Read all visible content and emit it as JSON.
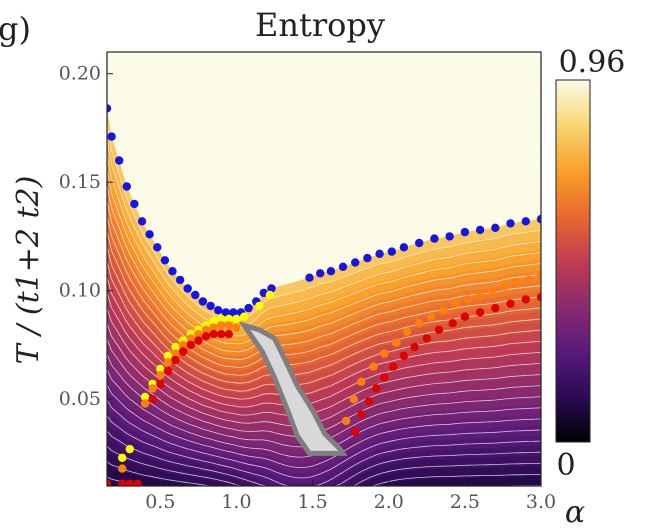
{
  "panel_label": "g)",
  "chart_data": {
    "type": "heatmap",
    "title": "Entropy",
    "xlabel": "α",
    "ylabel": "T / (t1+2 t2)",
    "xlim": [
      0.15,
      3.0
    ],
    "ylim": [
      0.01,
      0.21
    ],
    "x_ticks": [
      0.5,
      1.0,
      1.5,
      2.0,
      2.5,
      3.0
    ],
    "x_tick_labels": [
      "0.5",
      "1.0",
      "1.5",
      "2.0",
      "2.5",
      "3.0"
    ],
    "y_ticks": [
      0.05,
      0.1,
      0.15,
      0.2
    ],
    "y_tick_labels": [
      "0.05",
      "0.10",
      "0.15",
      "0.20"
    ],
    "colorbar": {
      "min": 0,
      "max": 0.96,
      "min_label": "0",
      "max_label": "0.96",
      "colormap": "inferno"
    },
    "colormap_stops": [
      "#000004",
      "#2c0b55",
      "#5a1a7a",
      "#8a2a6e",
      "#c13c52",
      "#e96a2c",
      "#f9a02a",
      "#f8d673",
      "#fcfbe8"
    ],
    "colors": {
      "blue": "#1515e8",
      "orange": "#ff7f0e",
      "red": "#e00000",
      "yellow": "#ffff00",
      "gray_region": "#d8d8d8",
      "gray_border": "#7f7f7f"
    },
    "series": [
      {
        "name": "blue",
        "color": "#1515e8",
        "points": [
          [
            0.15,
            0.184
          ],
          [
            0.18,
            0.171
          ],
          [
            0.23,
            0.16
          ],
          [
            0.28,
            0.148
          ],
          [
            0.33,
            0.14
          ],
          [
            0.38,
            0.132
          ],
          [
            0.43,
            0.126
          ],
          [
            0.48,
            0.12
          ],
          [
            0.53,
            0.114
          ],
          [
            0.58,
            0.109
          ],
          [
            0.63,
            0.105
          ],
          [
            0.68,
            0.101
          ],
          [
            0.73,
            0.098
          ],
          [
            0.78,
            0.095
          ],
          [
            0.83,
            0.093
          ],
          [
            0.88,
            0.091
          ],
          [
            0.93,
            0.09
          ],
          [
            0.98,
            0.09
          ],
          [
            1.03,
            0.09
          ],
          [
            1.08,
            0.092
          ],
          [
            1.13,
            0.095
          ],
          [
            1.18,
            0.099
          ],
          [
            1.23,
            0.101
          ],
          [
            1.48,
            0.106
          ],
          [
            1.55,
            0.108
          ],
          [
            1.62,
            0.109
          ],
          [
            1.7,
            0.111
          ],
          [
            1.78,
            0.113
          ],
          [
            1.86,
            0.115
          ],
          [
            1.94,
            0.117
          ],
          [
            2.02,
            0.118
          ],
          [
            2.1,
            0.12
          ],
          [
            2.2,
            0.122
          ],
          [
            2.3,
            0.124
          ],
          [
            2.4,
            0.125
          ],
          [
            2.5,
            0.127
          ],
          [
            2.6,
            0.128
          ],
          [
            2.7,
            0.129
          ],
          [
            2.8,
            0.131
          ],
          [
            2.9,
            0.132
          ],
          [
            3.0,
            0.133
          ]
        ]
      },
      {
        "name": "yellow",
        "color": "#ffff00",
        "points": [
          [
            0.25,
            0.023
          ],
          [
            0.3,
            0.027
          ],
          [
            0.4,
            0.051
          ],
          [
            0.45,
            0.057
          ],
          [
            0.5,
            0.064
          ],
          [
            0.55,
            0.07
          ],
          [
            0.6,
            0.074
          ],
          [
            0.65,
            0.077
          ],
          [
            0.7,
            0.08
          ],
          [
            0.75,
            0.082
          ],
          [
            0.8,
            0.084
          ],
          [
            0.85,
            0.086
          ],
          [
            0.9,
            0.087
          ],
          [
            0.95,
            0.087
          ],
          [
            1.0,
            0.087
          ],
          [
            1.05,
            0.088
          ],
          [
            1.15,
            0.093
          ],
          [
            1.22,
            0.098
          ]
        ]
      },
      {
        "name": "orange",
        "color": "#ff7f0e",
        "points": [
          [
            0.25,
            0.018
          ],
          [
            0.4,
            0.048
          ],
          [
            0.45,
            0.055
          ],
          [
            0.5,
            0.061
          ],
          [
            0.55,
            0.067
          ],
          [
            0.6,
            0.071
          ],
          [
            0.65,
            0.075
          ],
          [
            0.7,
            0.078
          ],
          [
            0.75,
            0.08
          ],
          [
            0.8,
            0.082
          ],
          [
            0.85,
            0.083
          ],
          [
            0.9,
            0.084
          ],
          [
            0.95,
            0.084
          ],
          [
            1.0,
            0.083
          ],
          [
            1.72,
            0.04
          ],
          [
            1.77,
            0.05
          ],
          [
            1.82,
            0.058
          ],
          [
            1.9,
            0.065
          ],
          [
            1.97,
            0.071
          ],
          [
            2.05,
            0.076
          ],
          [
            2.12,
            0.081
          ],
          [
            2.2,
            0.085
          ],
          [
            2.28,
            0.088
          ],
          [
            2.36,
            0.091
          ],
          [
            2.44,
            0.094
          ],
          [
            2.52,
            0.096
          ],
          [
            2.6,
            0.098
          ],
          [
            2.68,
            0.1
          ],
          [
            2.76,
            0.102
          ],
          [
            2.84,
            0.104
          ],
          [
            2.92,
            0.105
          ],
          [
            3.0,
            0.107
          ]
        ]
      },
      {
        "name": "red",
        "color": "#e00000",
        "points": [
          [
            0.15,
            0.011
          ],
          [
            0.25,
            0.011
          ],
          [
            0.3,
            0.011
          ],
          [
            0.35,
            0.011
          ],
          [
            0.45,
            0.05
          ],
          [
            0.5,
            0.057
          ],
          [
            0.55,
            0.063
          ],
          [
            0.6,
            0.068
          ],
          [
            0.65,
            0.072
          ],
          [
            0.7,
            0.075
          ],
          [
            0.75,
            0.077
          ],
          [
            0.8,
            0.079
          ],
          [
            0.85,
            0.08
          ],
          [
            0.9,
            0.08
          ],
          [
            0.95,
            0.08
          ],
          [
            1.78,
            0.035
          ],
          [
            1.82,
            0.043
          ],
          [
            1.87,
            0.049
          ],
          [
            1.92,
            0.055
          ],
          [
            1.97,
            0.06
          ],
          [
            2.03,
            0.065
          ],
          [
            2.1,
            0.07
          ],
          [
            2.17,
            0.074
          ],
          [
            2.25,
            0.078
          ],
          [
            2.33,
            0.082
          ],
          [
            2.42,
            0.085
          ],
          [
            2.5,
            0.088
          ],
          [
            2.6,
            0.09
          ],
          [
            2.7,
            0.092
          ],
          [
            2.8,
            0.094
          ],
          [
            2.9,
            0.096
          ],
          [
            3.0,
            0.097
          ]
        ]
      }
    ],
    "gray_region": [
      [
        1.05,
        0.084
      ],
      [
        1.15,
        0.082
      ],
      [
        1.25,
        0.078
      ],
      [
        1.32,
        0.068
      ],
      [
        1.4,
        0.056
      ],
      [
        1.5,
        0.045
      ],
      [
        1.58,
        0.034
      ],
      [
        1.68,
        0.027
      ],
      [
        1.7,
        0.025
      ],
      [
        1.48,
        0.025
      ],
      [
        1.4,
        0.033
      ],
      [
        1.33,
        0.046
      ],
      [
        1.25,
        0.06
      ],
      [
        1.17,
        0.072
      ],
      [
        1.1,
        0.079
      ]
    ],
    "contour_levels_T": [
      0.018,
      0.024,
      0.03,
      0.036,
      0.042,
      0.048,
      0.054,
      0.06,
      0.066,
      0.072,
      0.078,
      0.084,
      0.09,
      0.096,
      0.102,
      0.108,
      0.114,
      0.12,
      0.126,
      0.132,
      0.138,
      0.144,
      0.15,
      0.156,
      0.162
    ]
  }
}
